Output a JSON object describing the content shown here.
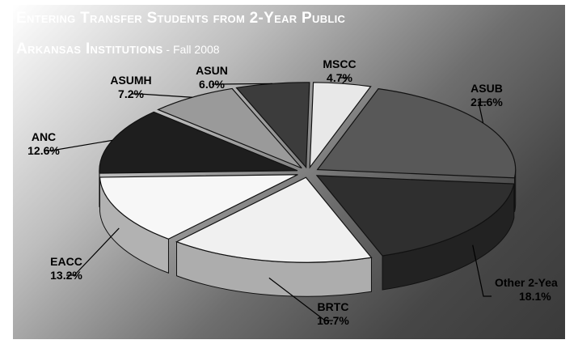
{
  "title_line1": "Entering Transfer Students from 2-Year Public",
  "title_line2": "Arkansas Institutions",
  "title_sep": " - ",
  "subtitle": "Fall 2008",
  "colors": {
    "background_light": "#ffffff",
    "background_dark": "#3a3a3a"
  },
  "chart_data": {
    "type": "pie",
    "style": "3d-exploded",
    "title": "Entering Transfer Students from 2-Year Public Arkansas Institutions - Fall 2008",
    "unit": "%",
    "slices": [
      {
        "label": "MSCC",
        "value": 4.7,
        "value_text": "4.7%",
        "color": "#e8e8e8"
      },
      {
        "label": "ASUB",
        "value": 21.6,
        "value_text": "21.6%",
        "color": "#585858"
      },
      {
        "label": "Other 2-Yea",
        "value": 18.1,
        "value_text": "18.1%",
        "color": "#2f2f2f"
      },
      {
        "label": "BRTC",
        "value": 16.7,
        "value_text": "16.7%",
        "color": "#f0f0f0"
      },
      {
        "label": "EACC",
        "value": 13.2,
        "value_text": "13.2%",
        "color": "#f7f7f7"
      },
      {
        "label": "ANC",
        "value": 12.6,
        "value_text": "12.6%",
        "color": "#1e1e1e"
      },
      {
        "label": "ASUMH",
        "value": 7.2,
        "value_text": "7.2%",
        "color": "#9a9a9a"
      },
      {
        "label": "ASUN",
        "value": 6.0,
        "value_text": "6.0%",
        "color": "#3c3c3c"
      }
    ]
  }
}
